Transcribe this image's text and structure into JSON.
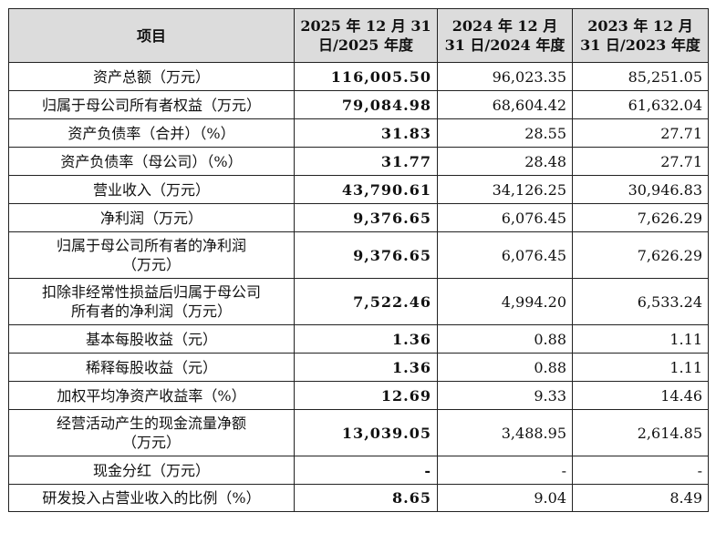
{
  "table": {
    "headers": [
      "项目",
      "2025 年 12 月 31 日/2025 年度",
      "2024 年 12 月 31 日/2024 年度",
      "2023 年 12 月 31 日/2023 年度"
    ],
    "rows": [
      {
        "item": "资产总额（万元）",
        "y2025": "116,005.50",
        "y2024": "96,023.35",
        "y2023": "85,251.05"
      },
      {
        "item": "归属于母公司所有者权益（万元）",
        "y2025": "79,084.98",
        "y2024": "68,604.42",
        "y2023": "61,632.04"
      },
      {
        "item": "资产负债率（合并）（%）",
        "y2025": "31.83",
        "y2024": "28.55",
        "y2023": "27.71"
      },
      {
        "item": "资产负债率（母公司）（%）",
        "y2025": "31.77",
        "y2024": "28.48",
        "y2023": "27.71"
      },
      {
        "item": "营业收入（万元）",
        "y2025": "43,790.61",
        "y2024": "34,126.25",
        "y2023": "30,946.83"
      },
      {
        "item": "净利润（万元）",
        "y2025": "9,376.65",
        "y2024": "6,076.45",
        "y2023": "7,626.29"
      },
      {
        "item": "归属于母公司所有者的净利润\n（万元）",
        "y2025": "9,376.65",
        "y2024": "6,076.45",
        "y2023": "7,626.29"
      },
      {
        "item": "扣除非经常性损益后归属于母公司\n所有者的净利润（万元）",
        "y2025": "7,522.46",
        "y2024": "4,994.20",
        "y2023": "6,533.24"
      },
      {
        "item": "基本每股收益（元）",
        "y2025": "1.36",
        "y2024": "0.88",
        "y2023": "1.11"
      },
      {
        "item": "稀释每股收益（元）",
        "y2025": "1.36",
        "y2024": "0.88",
        "y2023": "1.11"
      },
      {
        "item": "加权平均净资产收益率（%）",
        "y2025": "12.69",
        "y2024": "9.33",
        "y2023": "14.46"
      },
      {
        "item": "经营活动产生的现金流量净额\n（万元）",
        "y2025": "13,039.05",
        "y2024": "3,488.95",
        "y2023": "2,614.85"
      },
      {
        "item": "现金分红（万元）",
        "y2025": "-",
        "y2024": "-",
        "y2023": "-"
      },
      {
        "item": "研发投入占营业收入的比例（%）",
        "y2025": "8.65",
        "y2024": "9.04",
        "y2023": "8.49"
      }
    ]
  }
}
